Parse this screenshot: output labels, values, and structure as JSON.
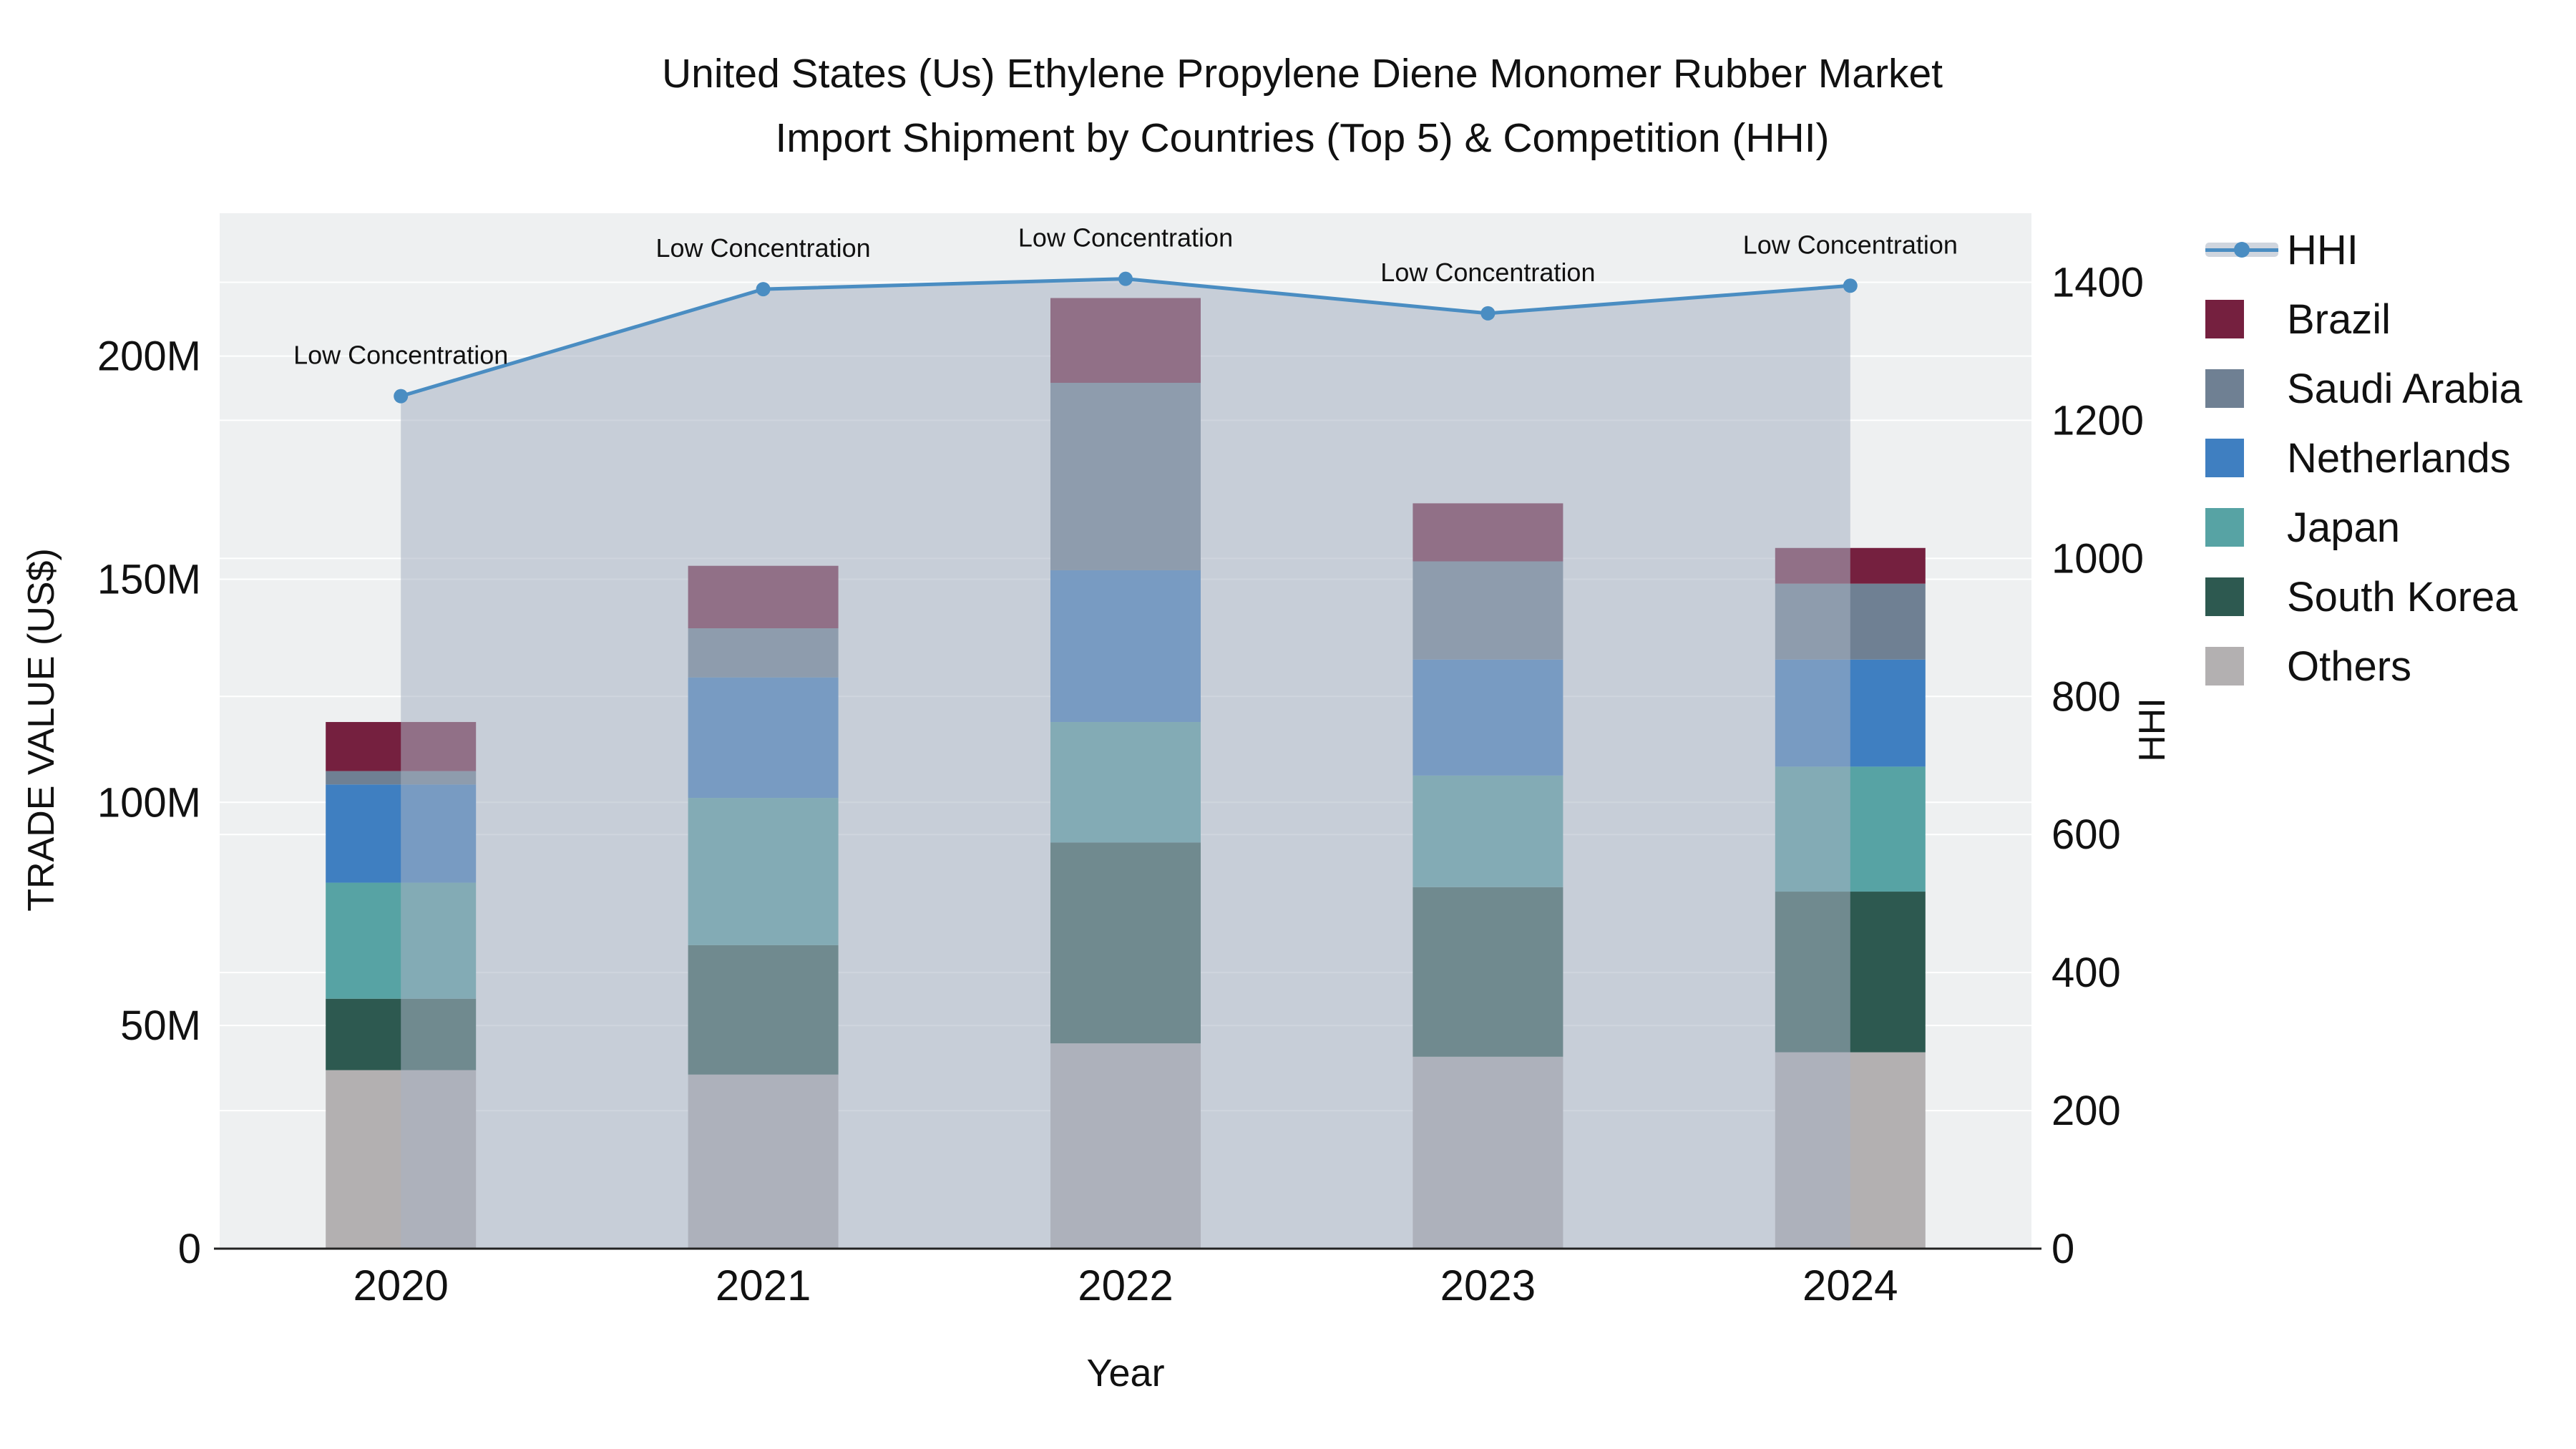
{
  "title": {
    "line1": "United States (Us) Ethylene Propylene Diene Monomer Rubber Market",
    "line2": "Import Shipment by Countries (Top 5) & Competition (HHI)"
  },
  "chart_data": {
    "type": "bar",
    "subtype": "stacked bars (import trade value by country) with HHI line and shaded area overlay",
    "categories": [
      "2020",
      "2021",
      "2022",
      "2023",
      "2024"
    ],
    "bar_unit": "million US$",
    "series": [
      {
        "name": "Others",
        "color": "#b3b0b1",
        "values": [
          40,
          39,
          46,
          43,
          44
        ]
      },
      {
        "name": "South Korea",
        "color": "#2d5950",
        "values": [
          16,
          29,
          45,
          38,
          36
        ]
      },
      {
        "name": "Japan",
        "color": "#57a3a4",
        "values": [
          26,
          33,
          27,
          25,
          28
        ]
      },
      {
        "name": "Netherlands",
        "color": "#3f7fc1",
        "values": [
          22,
          27,
          34,
          26,
          24
        ]
      },
      {
        "name": "Saudi Arabia",
        "color": "#6f8093",
        "values": [
          3,
          11,
          42,
          22,
          17
        ]
      },
      {
        "name": "Brazil",
        "color": "#75203f",
        "values": [
          11,
          14,
          19,
          13,
          8
        ]
      }
    ],
    "hhi_line": {
      "name": "HHI",
      "color": "#4a8dc2",
      "area_fill": "rgba(168,178,194,0.55)",
      "values": [
        1235,
        1390,
        1405,
        1355,
        1395
      ],
      "annotations": [
        "Low Concentration",
        "Low Concentration",
        "Low Concentration",
        "Low Concentration",
        "Low Concentration"
      ]
    },
    "xlabel": "Year",
    "ylabel_left": "TRADE VALUE (US$)",
    "ylabel_right": "HHI",
    "yticks_left": {
      "values": [
        0,
        50,
        100,
        150,
        200
      ],
      "labels": [
        "0",
        "50M",
        "100M",
        "150M",
        "200M"
      ]
    },
    "yticks_right": {
      "values": [
        0,
        200,
        400,
        600,
        800,
        1000,
        1200,
        1400
      ],
      "labels": [
        "0",
        "200",
        "400",
        "600",
        "800",
        "1000",
        "1200",
        "1400"
      ]
    },
    "ylim_left": [
      0,
      232
    ],
    "ylim_right": [
      0,
      1500
    ],
    "plot_bg": "#eef0f1",
    "axis_color": "#222222",
    "text_color": "#111111",
    "legend_items": [
      "HHI",
      "Brazil",
      "Saudi Arabia",
      "Netherlands",
      "Japan",
      "South Korea",
      "Others"
    ]
  }
}
